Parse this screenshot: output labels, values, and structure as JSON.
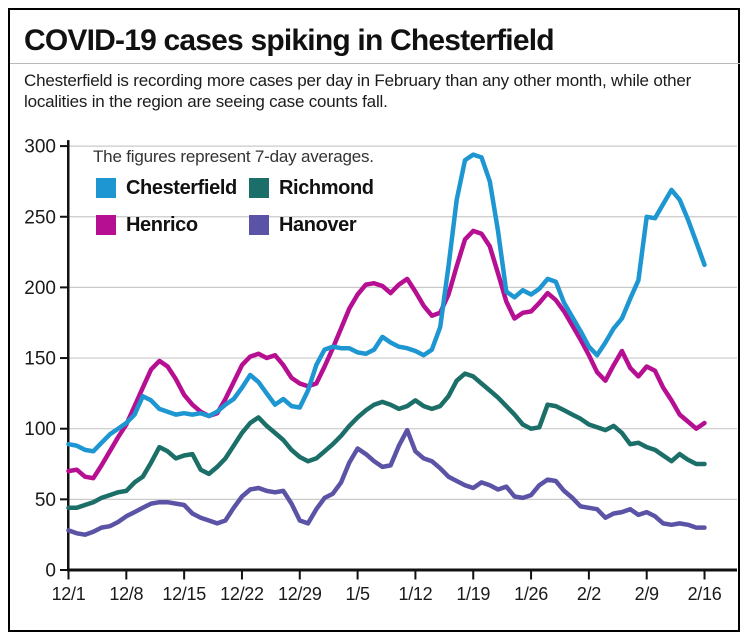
{
  "header": {
    "title": "COVID-19 cases spiking in Chesterfield",
    "subtitle_line1": "Chesterfield is recording more cases per day in February than any other month, while other",
    "subtitle_line2": "localities in the region are seeing case counts fall."
  },
  "chart_data": {
    "type": "line",
    "title": "COVID-19 cases spiking in Chesterfield",
    "note": "The figures represent 7-day averages.",
    "ylabel": "",
    "xlabel": "",
    "ylim": [
      0,
      300
    ],
    "y_ticks": [
      0,
      50,
      100,
      150,
      200,
      250,
      300
    ],
    "grid": "horizontal",
    "legend_position": "inside-top-left",
    "n_points": 78,
    "x_range": "daily from 12/1 to 2/16",
    "x_tick_labels": [
      "12/1",
      "12/8",
      "12/15",
      "12/22",
      "12/29",
      "1/5",
      "1/12",
      "1/19",
      "1/26",
      "2/2",
      "2/9",
      "2/16"
    ],
    "x_tick_day_offsets": [
      0,
      7,
      14,
      21,
      28,
      35,
      42,
      49,
      56,
      63,
      70,
      77
    ],
    "series": [
      {
        "name": "Chesterfield",
        "color": "#1e96d2",
        "values": [
          89,
          88,
          85,
          84,
          90,
          96,
          100,
          104,
          110,
          123,
          120,
          114,
          112,
          110,
          111,
          110,
          111,
          109,
          112,
          117,
          121,
          129,
          138,
          133,
          125,
          117,
          121,
          116,
          115,
          127,
          145,
          156,
          158,
          157,
          157,
          154,
          153,
          156,
          165,
          161,
          158,
          157,
          155,
          152,
          156,
          172,
          215,
          262,
          290,
          294,
          292,
          275,
          240,
          197,
          193,
          198,
          195,
          199,
          206,
          204,
          189,
          179,
          169,
          158,
          152,
          161,
          171,
          178,
          192,
          205,
          250,
          249,
          259,
          269,
          262,
          248,
          232,
          216
        ]
      },
      {
        "name": "Richmond",
        "color": "#1b6f68",
        "values": [
          44,
          44,
          46,
          48,
          51,
          53,
          55,
          56,
          62,
          66,
          76,
          87,
          84,
          79,
          81,
          82,
          71,
          68,
          73,
          79,
          88,
          97,
          104,
          108,
          102,
          97,
          92,
          85,
          80,
          77,
          79,
          84,
          89,
          95,
          102,
          108,
          113,
          117,
          119,
          117,
          114,
          116,
          120,
          116,
          114,
          116,
          123,
          134,
          139,
          137,
          132,
          127,
          122,
          116,
          110,
          103,
          100,
          101,
          117,
          116,
          113,
          110,
          107,
          103,
          101,
          99,
          102,
          97,
          89,
          90,
          87,
          85,
          81,
          77,
          82,
          78,
          75,
          75
        ]
      },
      {
        "name": "Henrico",
        "color": "#b60f92",
        "values": [
          70,
          71,
          66,
          65,
          74,
          84,
          94,
          103,
          116,
          129,
          142,
          148,
          144,
          135,
          124,
          117,
          112,
          109,
          111,
          121,
          133,
          145,
          151,
          153,
          150,
          152,
          145,
          136,
          132,
          130,
          132,
          144,
          157,
          171,
          185,
          195,
          202,
          203,
          201,
          196,
          202,
          206,
          197,
          187,
          180,
          182,
          195,
          215,
          234,
          240,
          238,
          229,
          210,
          190,
          178,
          182,
          183,
          189,
          196,
          191,
          183,
          173,
          163,
          152,
          140,
          134,
          145,
          155,
          143,
          137,
          144,
          141,
          129,
          120,
          110,
          105,
          100,
          104
        ]
      },
      {
        "name": "Hanover",
        "color": "#5b54a6",
        "values": [
          28,
          26,
          25,
          27,
          30,
          31,
          34,
          38,
          41,
          44,
          47,
          48,
          48,
          47,
          46,
          40,
          37,
          35,
          33,
          35,
          44,
          52,
          57,
          58,
          56,
          55,
          56,
          47,
          35,
          33,
          43,
          51,
          54,
          62,
          76,
          86,
          82,
          77,
          73,
          74,
          88,
          99,
          84,
          79,
          77,
          72,
          66,
          63,
          60,
          58,
          62,
          60,
          57,
          59,
          52,
          51,
          53,
          60,
          64,
          63,
          56,
          51,
          45,
          44,
          43,
          37,
          40,
          41,
          43,
          39,
          41,
          38,
          33,
          32,
          33,
          32,
          30,
          30
        ]
      }
    ]
  }
}
